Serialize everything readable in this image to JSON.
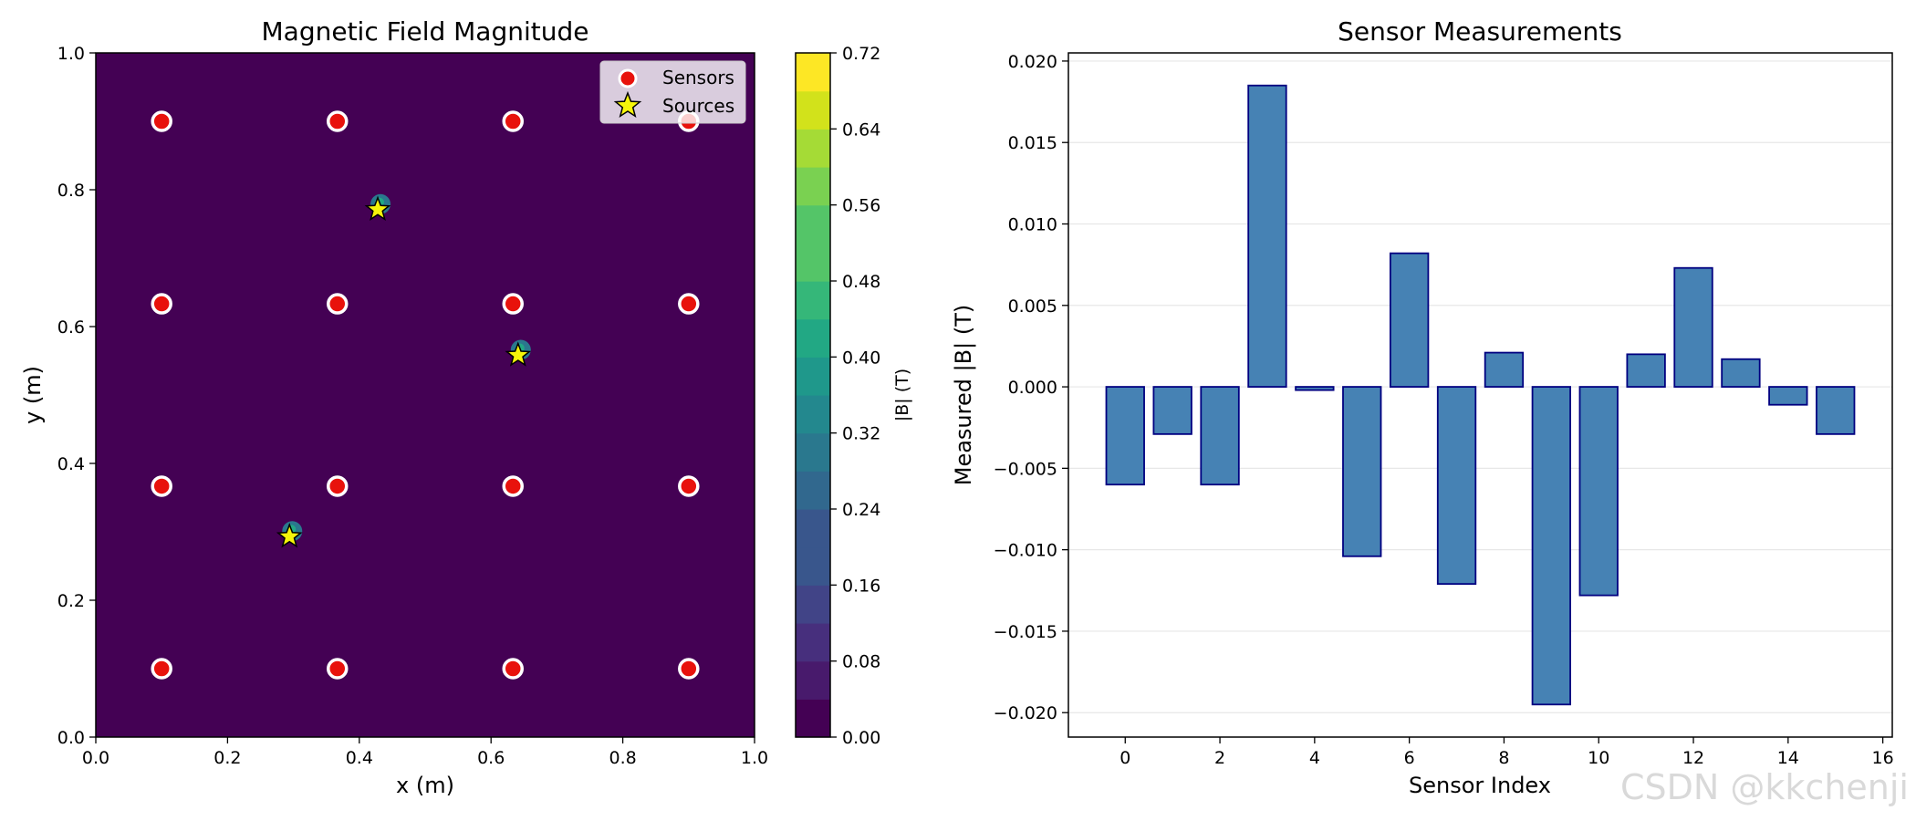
{
  "chart_data": [
    {
      "type": "heatmap",
      "title": "Magnetic Field Magnitude",
      "xlabel": "x (m)",
      "ylabel": "y (m)",
      "xlim": [
        0.0,
        1.0
      ],
      "ylim": [
        0.0,
        1.0
      ],
      "xticks": [
        "0.0",
        "0.2",
        "0.4",
        "0.6",
        "0.8",
        "1.0"
      ],
      "yticks": [
        "0.0",
        "0.2",
        "0.4",
        "0.6",
        "0.8",
        "1.0"
      ],
      "background_value": 0.0,
      "colorbar": {
        "label": "|B| (T)",
        "range": [
          0.0,
          0.72
        ],
        "levels": 18,
        "ticks": [
          "0.00",
          "0.08",
          "0.16",
          "0.24",
          "0.32",
          "0.40",
          "0.48",
          "0.56",
          "0.64",
          "0.72"
        ]
      },
      "colormap": "viridis",
      "sensors": {
        "label": "Sensors",
        "color": "#e8120c",
        "points": [
          [
            0.1,
            0.1
          ],
          [
            0.3667,
            0.1
          ],
          [
            0.6333,
            0.1
          ],
          [
            0.9,
            0.1
          ],
          [
            0.1,
            0.3667
          ],
          [
            0.3667,
            0.3667
          ],
          [
            0.6333,
            0.3667
          ],
          [
            0.9,
            0.3667
          ],
          [
            0.1,
            0.6333
          ],
          [
            0.3667,
            0.6333
          ],
          [
            0.6333,
            0.6333
          ],
          [
            0.9,
            0.6333
          ],
          [
            0.1,
            0.9
          ],
          [
            0.3667,
            0.9
          ],
          [
            0.6333,
            0.9
          ],
          [
            0.9,
            0.9
          ]
        ]
      },
      "sources": {
        "label": "Sources",
        "color": "#f5f50a",
        "points": [
          [
            0.428,
            0.771
          ],
          [
            0.641,
            0.558
          ],
          [
            0.294,
            0.293
          ]
        ]
      },
      "legend": {
        "position": "top-right",
        "entries": [
          "Sensors",
          "Sources"
        ]
      }
    },
    {
      "type": "bar",
      "title": "Sensor Measurements",
      "xlabel": "Sensor Index",
      "ylabel": "Measured |B| (T)",
      "categories": [
        0,
        1,
        2,
        3,
        4,
        5,
        6,
        7,
        8,
        9,
        10,
        11,
        12,
        13,
        14,
        15
      ],
      "values": [
        -0.006,
        -0.0029,
        -0.006,
        0.0185,
        -0.0002,
        -0.0104,
        0.0082,
        -0.0121,
        0.0021,
        -0.0195,
        -0.0128,
        0.002,
        0.0073,
        0.0017,
        -0.0011,
        -0.0029
      ],
      "xlim": [
        -1.2,
        16.2
      ],
      "ylim": [
        -0.0215,
        0.0205
      ],
      "xticks": [
        0,
        2,
        4,
        6,
        8,
        10,
        12,
        14,
        16
      ],
      "xtick_labels": [
        "0",
        "2",
        "4",
        "6",
        "8",
        "10",
        "12",
        "14",
        "16"
      ],
      "yticks": [
        -0.02,
        -0.015,
        -0.01,
        -0.005,
        0.0,
        0.005,
        0.01,
        0.015,
        0.02
      ],
      "ytick_labels": [
        "−0.020",
        "−0.015",
        "−0.010",
        "−0.005",
        "0.000",
        "0.005",
        "0.010",
        "0.015",
        "0.020"
      ],
      "bar_color": "#4682b4",
      "edge_color": "#000080",
      "grid": "y"
    }
  ],
  "watermark": "CSDN @kkchenji"
}
